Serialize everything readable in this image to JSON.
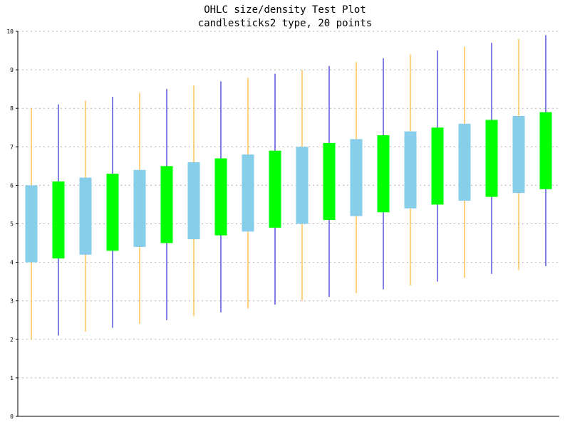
{
  "chart_data": {
    "type": "candlestick",
    "title": "OHLC size/density Test Plot",
    "subtitle": "candlesticks2 type, 20 points",
    "ylim": [
      0,
      10
    ],
    "y_ticks": [
      "0",
      "1",
      "2",
      "3",
      "4",
      "5",
      "6",
      "7",
      "8",
      "9",
      "10"
    ],
    "grid": true,
    "colors": {
      "up_body": "#00ff00",
      "up_wick": "#0000cc",
      "down_body": "#87ceeb",
      "down_wick": "#ffa500",
      "grid": "#b4b4b4",
      "axis": "#000000"
    },
    "points": [
      {
        "open": 6.0,
        "high": 8.0,
        "low": 2.0,
        "close": 4.0
      },
      {
        "open": 4.1,
        "high": 8.1,
        "low": 2.1,
        "close": 6.1
      },
      {
        "open": 6.2,
        "high": 8.2,
        "low": 2.2,
        "close": 4.2
      },
      {
        "open": 4.3,
        "high": 8.3,
        "low": 2.3,
        "close": 6.3
      },
      {
        "open": 6.4,
        "high": 8.4,
        "low": 2.4,
        "close": 4.4
      },
      {
        "open": 4.5,
        "high": 8.5,
        "low": 2.5,
        "close": 6.5
      },
      {
        "open": 6.6,
        "high": 8.6,
        "low": 2.6,
        "close": 4.6
      },
      {
        "open": 4.7,
        "high": 8.7,
        "low": 2.7,
        "close": 6.7
      },
      {
        "open": 6.8,
        "high": 8.8,
        "low": 2.8,
        "close": 4.8
      },
      {
        "open": 4.9,
        "high": 8.9,
        "low": 2.9,
        "close": 6.9
      },
      {
        "open": 7.0,
        "high": 9.0,
        "low": 3.0,
        "close": 5.0
      },
      {
        "open": 5.1,
        "high": 9.1,
        "low": 3.1,
        "close": 7.1
      },
      {
        "open": 7.2,
        "high": 9.2,
        "low": 3.2,
        "close": 5.2
      },
      {
        "open": 5.3,
        "high": 9.3,
        "low": 3.3,
        "close": 7.3
      },
      {
        "open": 7.4,
        "high": 9.4,
        "low": 3.4,
        "close": 5.4
      },
      {
        "open": 5.5,
        "high": 9.5,
        "low": 3.5,
        "close": 7.5
      },
      {
        "open": 7.6,
        "high": 9.6,
        "low": 3.6,
        "close": 5.6
      },
      {
        "open": 5.7,
        "high": 9.7,
        "low": 3.7,
        "close": 7.7
      },
      {
        "open": 7.8,
        "high": 9.8,
        "low": 3.8,
        "close": 5.8
      },
      {
        "open": 5.9,
        "high": 9.9,
        "low": 3.9,
        "close": 7.9
      }
    ]
  }
}
